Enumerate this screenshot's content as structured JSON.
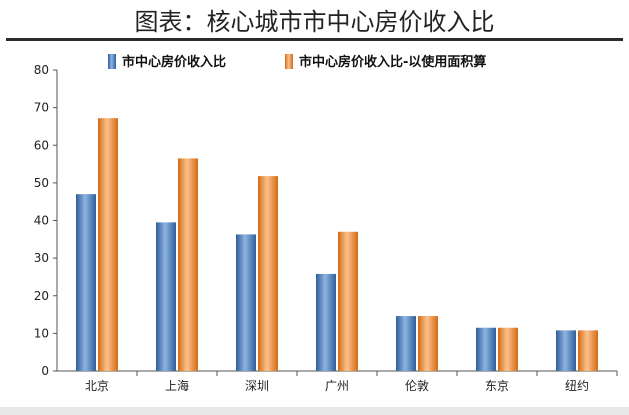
{
  "title": "图表：核心城市市中心房价收入比",
  "colors": {
    "series1": "#4f81bd",
    "series2": "#f79646"
  },
  "chart_data": {
    "type": "bar",
    "categories": [
      "北京",
      "上海",
      "深圳",
      "广州",
      "伦敦",
      "东京",
      "纽约"
    ],
    "series": [
      {
        "name": "市中心房价收入比",
        "values": [
          47,
          39.5,
          36.3,
          25.8,
          14.6,
          11.5,
          10.8
        ]
      },
      {
        "name": "市中心房价收入比-以使用面积算",
        "values": [
          67.2,
          56.5,
          51.8,
          37,
          14.6,
          11.5,
          10.8
        ]
      }
    ],
    "ylim": [
      0,
      80
    ],
    "yticks": [
      0,
      10,
      20,
      30,
      40,
      50,
      60,
      70,
      80
    ],
    "grid": false,
    "legend_position": "top"
  }
}
